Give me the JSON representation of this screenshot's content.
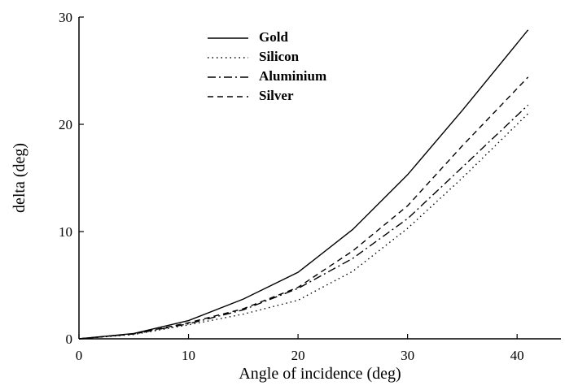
{
  "chart_data": {
    "type": "line",
    "x_label": "Angle of incidence (deg)",
    "y_label": "delta (deg)",
    "xlim": [
      0,
      44
    ],
    "ylim": [
      0,
      30
    ],
    "xticks": [
      0,
      10,
      20,
      30,
      40
    ],
    "yticks": [
      0,
      10,
      20,
      30
    ],
    "x": [
      0,
      5,
      10,
      15,
      20,
      25,
      30,
      35,
      41
    ],
    "series": [
      {
        "name": "Gold",
        "color": "#000000",
        "style": "solid",
        "values": [
          0,
          0.5,
          1.7,
          3.7,
          6.2,
          10.2,
          15.3,
          21.3,
          28.8
        ]
      },
      {
        "name": "Silicon",
        "color": "#000000",
        "style": "dotted",
        "values": [
          0,
          0.4,
          1.3,
          2.3,
          3.6,
          6.3,
          10.3,
          15,
          21
        ]
      },
      {
        "name": "Aluminium",
        "color": "#000000",
        "style": "dashdot",
        "values": [
          0,
          0.45,
          1.4,
          2.7,
          4.7,
          7.5,
          11.2,
          16,
          21.8
        ]
      },
      {
        "name": "Silver",
        "color": "#000000",
        "style": "dashed",
        "values": [
          0,
          0.45,
          1.5,
          2.8,
          4.8,
          8.2,
          12.4,
          18,
          24.4
        ]
      }
    ]
  }
}
